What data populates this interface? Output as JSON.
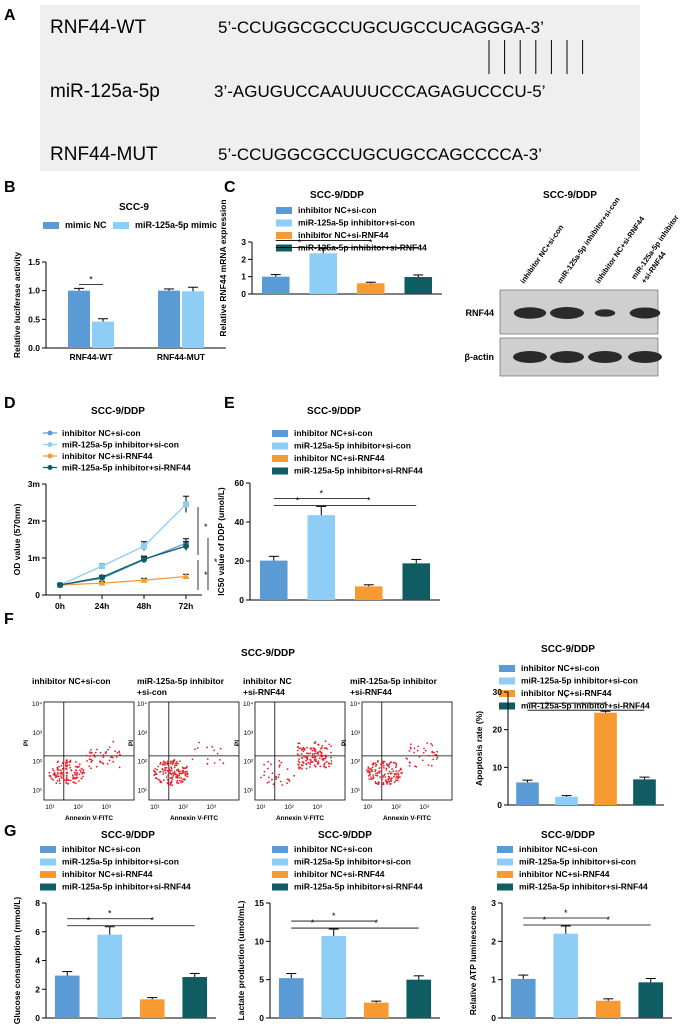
{
  "colors": {
    "c1": "#5b9bd5",
    "c2": "#8ecdf6",
    "c3": "#f79a32",
    "c4": "#0f5c63",
    "mimicNC": "#5b9bd5",
    "mimic": "#8ecdf6"
  },
  "panels": {
    "A": "A",
    "B": "B",
    "C": "C",
    "D": "D",
    "E": "E",
    "F": "F",
    "G": "G"
  },
  "panelA": {
    "rows": [
      {
        "label": "RNF44-WT",
        "seq": "5’-CCUGGCGCCUGCUGCCUCAGGGA-3’"
      },
      {
        "label": "miR-125a-5p",
        "seq": "3’-AGUGUCCAAUUUCCCAGAGUCCCU-5’"
      },
      {
        "label": "RNF44-MUT",
        "seq": "5’-CCUGGCGCCUGCUGCCAGCCCCA-3’"
      }
    ]
  },
  "groups": [
    "inhibitor NC+si-con",
    "miR-125a-5p inhibitor+si-con",
    "inhibitor NC+si-RNF44",
    "miR-125a-5p inhibitor+si-RNF44"
  ],
  "sig": "*",
  "panelC_blot": {
    "title": "SCC-9/DDP",
    "lanes": [
      "inhibitor NC+si-con",
      "miR-125a-5p inhibitor+si-con",
      "inhibitor NC+si-RNF44",
      "miR-125a-5p inhibitor",
      "+si-RNF44"
    ],
    "rows": [
      "RNF44",
      "β-actin"
    ],
    "rnf44_levels": [
      0.95,
      1.0,
      0.55,
      0.9
    ]
  },
  "panelF_facs": {
    "title": "SCC-9/DDP",
    "plots": [
      {
        "l1": "inhibitor NC+si-con",
        "l2": "",
        "rate": 6.0
      },
      {
        "l1": "miR-125a-5p inhibitor",
        "l2": "+si-con",
        "rate": 2.2
      },
      {
        "l1": "inhibitor NC",
        "l2": "+si-RNF44",
        "rate": 24.5
      },
      {
        "l1": "miR-125a-5p inhibitor",
        "l2": "+si-RNF44",
        "rate": 6.8
      }
    ],
    "xlabel": "Annexin V-FITC",
    "ylabel": "PI",
    "xticks": [
      "10¹",
      "10²",
      "10³"
    ],
    "yticks": [
      "10⁴",
      "10³",
      "10²",
      "10¹"
    ]
  },
  "chart_data": [
    {
      "id": "B",
      "type": "bar",
      "title": "SCC-9",
      "categories": [
        "RNF44-WT",
        "RNF44-MUT"
      ],
      "series": [
        {
          "name": "mimic NC",
          "values": [
            1.0,
            1.0
          ],
          "errors": [
            0.04,
            0.03
          ]
        },
        {
          "name": "miR-125a-5p mimic",
          "values": [
            0.46,
            0.99
          ],
          "errors": [
            0.05,
            0.07
          ]
        }
      ],
      "ylabel": "Relative luciferase activity",
      "ylim": [
        0,
        1.5
      ],
      "yticks": [
        "0.0",
        "0.5",
        "1.0",
        "1.5"
      ]
    },
    {
      "id": "C",
      "type": "bar",
      "title": "SCC-9/DDP",
      "values": [
        1.0,
        2.35,
        0.62,
        0.98
      ],
      "errors": [
        0.12,
        0.28,
        0.06,
        0.12
      ],
      "ylabel": "Relative RNF44 mRNA expression",
      "ylim": [
        0,
        3
      ],
      "yticks": [
        "0",
        "1",
        "2",
        "3"
      ]
    },
    {
      "id": "D",
      "type": "line",
      "title": "SCC-9/DDP",
      "x": [
        "0h",
        "24h",
        "48h",
        "72h"
      ],
      "series": [
        {
          "name": "inhibitor NC+si-con",
          "values": [
            0.27,
            0.45,
            0.95,
            1.4
          ],
          "errors": [
            0.03,
            0.05,
            0.08,
            0.12
          ]
        },
        {
          "name": "miR-125a-5p inhibitor+si-con",
          "values": [
            0.27,
            0.78,
            1.32,
            2.45
          ],
          "errors": [
            0.03,
            0.07,
            0.12,
            0.22
          ]
        },
        {
          "name": "inhibitor NC+si-RNF44",
          "values": [
            0.27,
            0.32,
            0.4,
            0.5
          ],
          "errors": [
            0.03,
            0.04,
            0.05,
            0.06
          ]
        },
        {
          "name": "miR-125a-5p inhibitor+si-RNF44",
          "values": [
            0.27,
            0.48,
            0.97,
            1.32
          ],
          "errors": [
            0.03,
            0.05,
            0.08,
            0.12
          ]
        }
      ],
      "ylabel": "OD value (570nm)",
      "ylim": [
        0,
        3
      ],
      "yticks": [
        "0",
        "1m",
        "2m",
        "3m"
      ]
    },
    {
      "id": "E",
      "type": "bar",
      "title": "SCC-9/DDP",
      "values": [
        20.2,
        43.5,
        7.0,
        18.8
      ],
      "errors": [
        2.2,
        4.5,
        0.8,
        2.0
      ],
      "ylabel": "IC50 value of DDP (umol/L)",
      "ylim": [
        0,
        60
      ],
      "yticks": [
        "0",
        "20",
        "40",
        "60"
      ]
    },
    {
      "id": "F",
      "type": "bar",
      "title": "SCC-9/DDP",
      "values": [
        6.0,
        2.2,
        24.5,
        6.8
      ],
      "errors": [
        0.6,
        0.3,
        0.4,
        0.6
      ],
      "ylabel": "Apoptosis rate (%)",
      "ylim": [
        0,
        30
      ],
      "yticks": [
        "0",
        "10",
        "20",
        "30"
      ]
    },
    {
      "id": "G1",
      "type": "bar",
      "title": "SCC-9/DDP",
      "values": [
        2.95,
        5.8,
        1.3,
        2.85
      ],
      "errors": [
        0.28,
        0.55,
        0.12,
        0.25
      ],
      "ylabel": "Glucose consumption (mmol/L)",
      "ylim": [
        0,
        8
      ],
      "yticks": [
        "0",
        "2",
        "4",
        "6",
        "8"
      ]
    },
    {
      "id": "G2",
      "type": "bar",
      "title": "SCC-9/DDP",
      "values": [
        5.2,
        10.7,
        2.0,
        5.0
      ],
      "errors": [
        0.6,
        0.9,
        0.2,
        0.5
      ],
      "ylabel": "Lactate production (umol/mL)",
      "ylim": [
        0,
        15
      ],
      "yticks": [
        "0",
        "5",
        "10",
        "15"
      ]
    },
    {
      "id": "G3",
      "type": "bar",
      "title": "SCC-9/DDP",
      "values": [
        1.02,
        2.2,
        0.45,
        0.93
      ],
      "errors": [
        0.1,
        0.2,
        0.05,
        0.1
      ],
      "ylabel": "Relative ATP luminescence",
      "ylim": [
        0,
        3
      ],
      "yticks": [
        "0",
        "1",
        "2",
        "3"
      ]
    }
  ]
}
